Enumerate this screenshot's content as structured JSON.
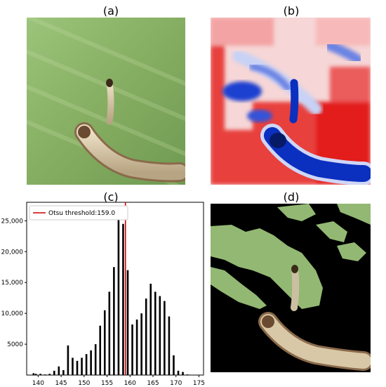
{
  "panels": {
    "a": "(a)",
    "b": "(b)",
    "c": "(c)",
    "d": "(d)"
  },
  "colors": {
    "histogram_bar": "#000000",
    "threshold_line": "#cc0000",
    "leaf_green": "#8fb46a",
    "heatmap_red": "#e31a1c",
    "heatmap_blue": "#0b2fbf"
  },
  "chart_data": {
    "type": "bar",
    "title": "",
    "xlabel": "",
    "ylabel": "",
    "xlim": [
      137.5,
      176
    ],
    "ylim": [
      0,
      28000
    ],
    "x_ticks": [
      140,
      145,
      150,
      155,
      160,
      165,
      170,
      175
    ],
    "y_ticks": [
      5000,
      10000,
      15000,
      20000,
      25000
    ],
    "y_tick_labels": [
      "5000",
      "10,000",
      "15,000",
      "20,000",
      "25,000"
    ],
    "legend": {
      "position": "top-left",
      "entries": [
        {
          "label": "Otsu threshold:159.0"
        }
      ]
    },
    "threshold": 159.0,
    "bins": [
      {
        "x": 139,
        "value": 300
      },
      {
        "x": 139.5,
        "value": 200
      },
      {
        "x": 140.5,
        "value": 200
      },
      {
        "x": 141.5,
        "value": 100
      },
      {
        "x": 142.5,
        "value": 200
      },
      {
        "x": 143.5,
        "value": 700
      },
      {
        "x": 144.5,
        "value": 1400
      },
      {
        "x": 145.5,
        "value": 800
      },
      {
        "x": 146.5,
        "value": 4800
      },
      {
        "x": 147.5,
        "value": 2800
      },
      {
        "x": 148.5,
        "value": 2300
      },
      {
        "x": 149.5,
        "value": 2800
      },
      {
        "x": 150.5,
        "value": 3400
      },
      {
        "x": 151.5,
        "value": 4000
      },
      {
        "x": 152.5,
        "value": 5000
      },
      {
        "x": 153.5,
        "value": 8000
      },
      {
        "x": 154.5,
        "value": 10500
      },
      {
        "x": 155.5,
        "value": 13500
      },
      {
        "x": 156.5,
        "value": 17500
      },
      {
        "x": 157.5,
        "value": 26200
      },
      {
        "x": 158.5,
        "value": 24500
      },
      {
        "x": 159.5,
        "value": 17000
      },
      {
        "x": 160.5,
        "value": 8200
      },
      {
        "x": 161.5,
        "value": 9000
      },
      {
        "x": 162.5,
        "value": 10000
      },
      {
        "x": 163.5,
        "value": 12400
      },
      {
        "x": 164.5,
        "value": 14800
      },
      {
        "x": 165.5,
        "value": 13500
      },
      {
        "x": 166.5,
        "value": 12800
      },
      {
        "x": 167.5,
        "value": 12000
      },
      {
        "x": 168.5,
        "value": 9500
      },
      {
        "x": 169.5,
        "value": 3200
      },
      {
        "x": 170.5,
        "value": 700
      },
      {
        "x": 171.5,
        "value": 500
      },
      {
        "x": 172.5,
        "value": 100
      }
    ]
  }
}
